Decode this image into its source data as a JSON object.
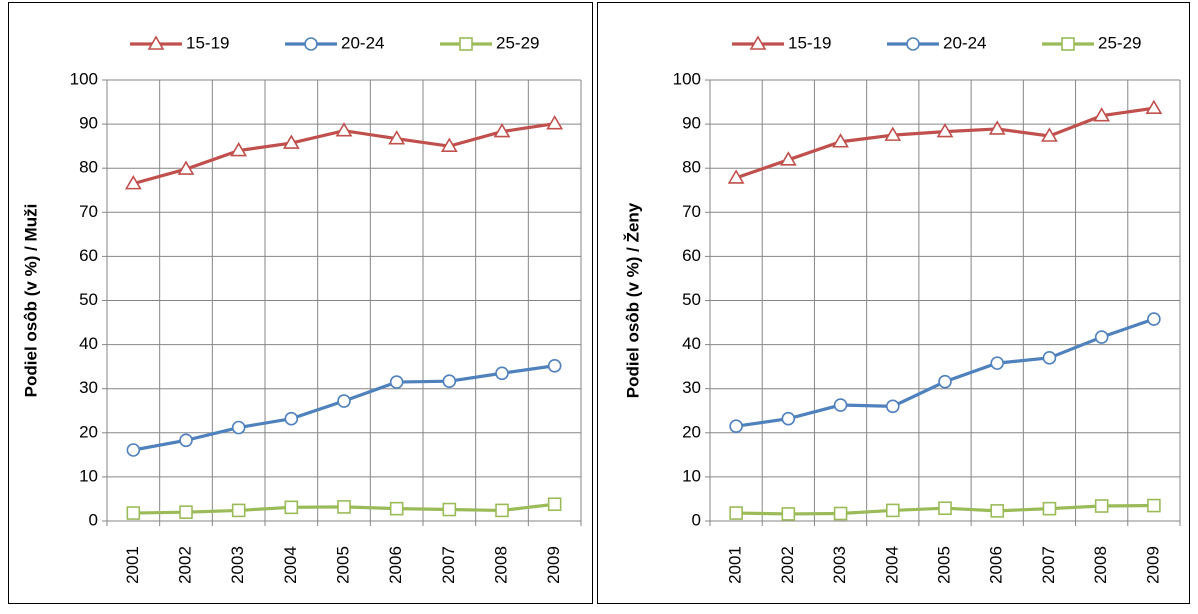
{
  "chart_data": [
    {
      "type": "line",
      "y_axis_label": "Podiel osôb (v %) / Muži",
      "categories": [
        "2001",
        "2002",
        "2003",
        "2004",
        "2005",
        "2006",
        "2007",
        "2008",
        "2009"
      ],
      "ylim": [
        0,
        100
      ],
      "yticks": [
        0,
        10,
        20,
        30,
        40,
        50,
        60,
        70,
        80,
        90,
        100
      ],
      "grid": true,
      "legend": "top",
      "series": [
        {
          "name": "15-19",
          "color": "#c0504d",
          "marker": "triangle",
          "values": [
            76.5,
            79.8,
            84,
            85.7,
            88.5,
            86.7,
            85,
            88.3,
            90.1
          ]
        },
        {
          "name": "20-24",
          "color": "#4f81bd",
          "marker": "circle",
          "values": [
            16.1,
            18.3,
            21.2,
            23.2,
            27.2,
            31.5,
            31.7,
            33.5,
            35.2
          ]
        },
        {
          "name": "25-29",
          "color": "#9bbb59",
          "marker": "square",
          "values": [
            1.8,
            2,
            2.4,
            3.1,
            3.2,
            2.8,
            2.6,
            2.4,
            3.8
          ]
        }
      ]
    },
    {
      "type": "line",
      "y_axis_label": "Podiel osôb (v %) / Ženy",
      "categories": [
        "2001",
        "2002",
        "2003",
        "2004",
        "2005",
        "2006",
        "2007",
        "2008",
        "2009"
      ],
      "ylim": [
        0,
        100
      ],
      "yticks": [
        0,
        10,
        20,
        30,
        40,
        50,
        60,
        70,
        80,
        90,
        100
      ],
      "grid": true,
      "legend": "top",
      "series": [
        {
          "name": "15-19",
          "color": "#c0504d",
          "marker": "triangle",
          "values": [
            77.8,
            81.9,
            86,
            87.5,
            88.3,
            88.9,
            87.3,
            91.9,
            93.6
          ]
        },
        {
          "name": "20-24",
          "color": "#4f81bd",
          "marker": "circle",
          "values": [
            21.5,
            23.2,
            26.3,
            26,
            31.6,
            35.8,
            37,
            41.7,
            45.8
          ]
        },
        {
          "name": "25-29",
          "color": "#9bbb59",
          "marker": "square",
          "values": [
            1.8,
            1.6,
            1.7,
            2.4,
            2.9,
            2.3,
            2.8,
            3.4,
            3.5
          ]
        }
      ]
    }
  ]
}
